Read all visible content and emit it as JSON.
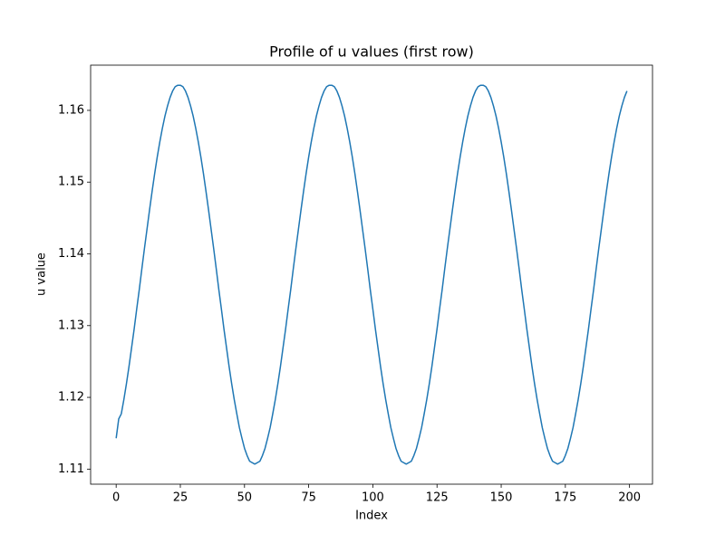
{
  "chart_data": {
    "type": "line",
    "title": "Profile of u values (first row)",
    "xlabel": "Index",
    "ylabel": "u value",
    "color": "#1f77b4",
    "x": [
      0,
      1,
      2,
      3,
      4,
      5,
      6,
      7,
      8,
      9,
      10,
      11,
      12,
      13,
      14,
      15,
      16,
      17,
      18,
      19,
      20,
      21,
      22,
      23,
      24,
      25,
      26,
      27,
      28,
      29,
      30,
      31,
      32,
      33,
      34,
      35,
      36,
      37,
      38,
      39,
      40,
      41,
      42,
      43,
      44,
      45,
      46,
      47,
      48,
      49,
      50,
      51,
      52,
      53,
      54,
      55,
      56,
      57,
      58,
      59,
      60,
      61,
      62,
      63,
      64,
      65,
      66,
      67,
      68,
      69,
      70,
      71,
      72,
      73,
      74,
      75,
      76,
      77,
      78,
      79,
      80,
      81,
      82,
      83,
      84,
      85,
      86,
      87,
      88,
      89,
      90,
      91,
      92,
      93,
      94,
      95,
      96,
      97,
      98,
      99,
      100,
      101,
      102,
      103,
      104,
      105,
      106,
      107,
      108,
      109,
      110,
      111,
      112,
      113,
      114,
      115,
      116,
      117,
      118,
      119,
      120,
      121,
      122,
      123,
      124,
      125,
      126,
      127,
      128,
      129,
      130,
      131,
      132,
      133,
      134,
      135,
      136,
      137,
      138,
      139,
      140,
      141,
      142,
      143,
      144,
      145,
      146,
      147,
      148,
      149,
      150,
      151,
      152,
      153,
      154,
      155,
      156,
      157,
      158,
      159,
      160,
      161,
      162,
      163,
      164,
      165,
      166,
      167,
      168,
      169,
      170,
      171,
      172,
      173,
      174,
      175,
      176,
      177,
      178,
      179,
      180,
      181,
      182,
      183,
      184,
      185,
      186,
      187,
      188,
      189,
      190,
      191,
      192,
      193,
      194,
      195,
      196,
      197,
      198,
      199
    ],
    "values": [
      1.1143,
      1.117,
      1.1177,
      1.1197,
      1.1219,
      1.1243,
      1.1269,
      1.1295,
      1.1323,
      1.135,
      1.1379,
      1.1407,
      1.1434,
      1.1461,
      1.1487,
      1.1512,
      1.1535,
      1.1556,
      1.1575,
      1.1592,
      1.1606,
      1.1618,
      1.1627,
      1.1633,
      1.1635,
      1.1635,
      1.1633,
      1.1627,
      1.1618,
      1.1606,
      1.1592,
      1.1575,
      1.1556,
      1.1535,
      1.1512,
      1.1487,
      1.1461,
      1.1434,
      1.1407,
      1.1379,
      1.135,
      1.1323,
      1.1295,
      1.1269,
      1.1243,
      1.1219,
      1.1197,
      1.1177,
      1.1158,
      1.1143,
      1.1129,
      1.1119,
      1.1111,
      1.1109,
      1.1107,
      1.1109,
      1.1111,
      1.1119,
      1.1129,
      1.1143,
      1.1158,
      1.1177,
      1.1197,
      1.1219,
      1.1243,
      1.1269,
      1.1295,
      1.1323,
      1.135,
      1.1379,
      1.1407,
      1.1434,
      1.1461,
      1.1487,
      1.1512,
      1.1535,
      1.1556,
      1.1575,
      1.1592,
      1.1606,
      1.1618,
      1.1627,
      1.1633,
      1.1635,
      1.1635,
      1.1633,
      1.1627,
      1.1618,
      1.1606,
      1.1592,
      1.1575,
      1.1556,
      1.1535,
      1.1512,
      1.1487,
      1.1461,
      1.1434,
      1.1407,
      1.1379,
      1.135,
      1.1323,
      1.1295,
      1.1269,
      1.1243,
      1.1219,
      1.1197,
      1.1177,
      1.1158,
      1.1143,
      1.1129,
      1.1119,
      1.1111,
      1.1109,
      1.1107,
      1.1109,
      1.1111,
      1.1119,
      1.1129,
      1.1143,
      1.1158,
      1.1177,
      1.1197,
      1.1219,
      1.1243,
      1.1269,
      1.1295,
      1.1323,
      1.135,
      1.1379,
      1.1407,
      1.1434,
      1.1461,
      1.1487,
      1.1512,
      1.1535,
      1.1556,
      1.1575,
      1.1592,
      1.1606,
      1.1618,
      1.1627,
      1.1633,
      1.1635,
      1.1635,
      1.1633,
      1.1627,
      1.1618,
      1.1606,
      1.1592,
      1.1575,
      1.1556,
      1.1535,
      1.1512,
      1.1487,
      1.1461,
      1.1434,
      1.1407,
      1.1379,
      1.135,
      1.1323,
      1.1295,
      1.1269,
      1.1243,
      1.1219,
      1.1197,
      1.1177,
      1.1158,
      1.1143,
      1.1129,
      1.1119,
      1.1111,
      1.1109,
      1.1107,
      1.1109,
      1.1111,
      1.1119,
      1.1129,
      1.1143,
      1.1158,
      1.1177,
      1.1197,
      1.1219,
      1.1243,
      1.1269,
      1.1295,
      1.1323,
      1.135,
      1.1379,
      1.1407,
      1.1434,
      1.1461,
      1.1487,
      1.1512,
      1.1535,
      1.1556,
      1.1575,
      1.1592,
      1.1606,
      1.1618,
      1.1627
    ],
    "xlim": [
      -9.95,
      208.95
    ],
    "xticks": [
      0,
      25,
      50,
      75,
      100,
      125,
      150,
      175,
      200
    ],
    "ylim": [
      1.1079,
      1.1663
    ],
    "yticks": [
      1.11,
      1.12,
      1.13,
      1.14,
      1.15,
      1.16
    ]
  }
}
